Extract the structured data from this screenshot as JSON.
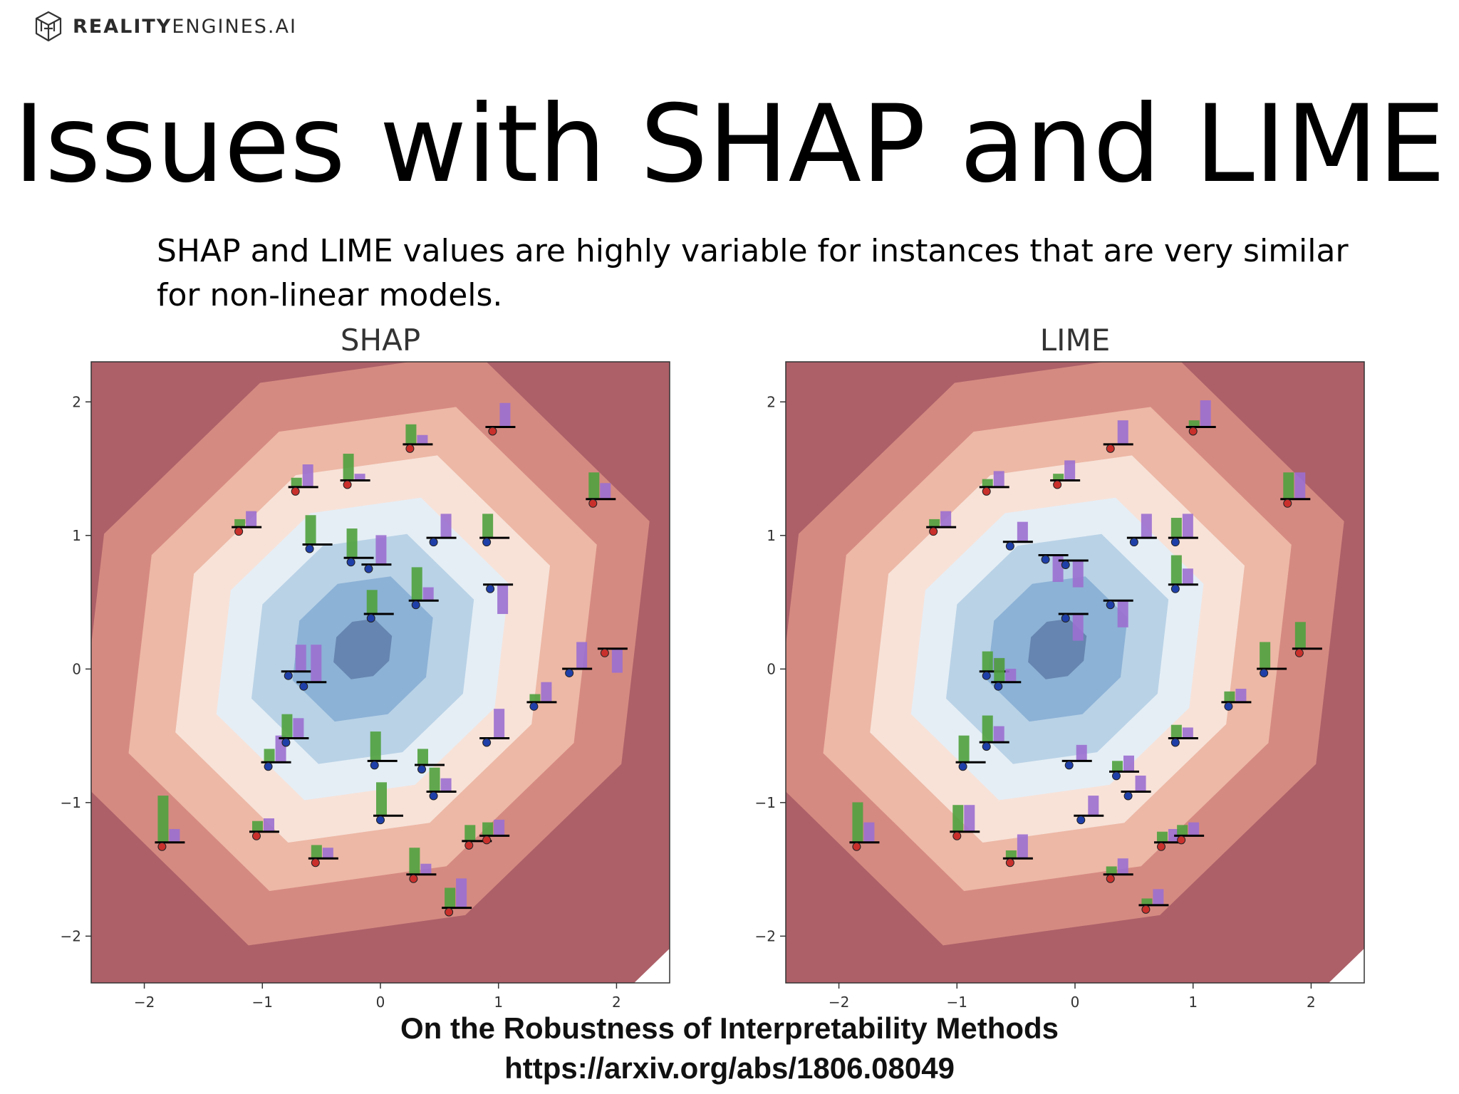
{
  "logo": {
    "bold": "REALITY",
    "light": "ENGINES.AI",
    "icon": "cube-network-icon"
  },
  "slide": {
    "title": "Issues with SHAP and LIME",
    "subtitle": "SHAP and LIME values are highly variable for instances that are very similar for non-linear models."
  },
  "caption": {
    "line1": "On the Robustness of Interpretability Methods",
    "line2": "https://arxiv.org/abs/1806.08049"
  },
  "colors": {
    "feature1_bar": "#4fa13e",
    "feature2_bar": "#9b6fd0",
    "class_a_point": "#c9302c",
    "class_b_point": "#1f3fa8",
    "baseline": "#000000"
  },
  "chart_data": [
    {
      "type": "scatter",
      "title": "SHAP",
      "xlabel": "",
      "ylabel": "",
      "xlim": [
        -2.45,
        2.45
      ],
      "ylim": [
        -2.35,
        2.3
      ],
      "xticks": [
        -2,
        -1,
        0,
        1,
        2
      ],
      "yticks": [
        -2,
        -1,
        0,
        1,
        2
      ],
      "grid": false,
      "background": "filled contour of model output, blue center to red edges",
      "glyphs": "each point has a horizontal baseline with a green bar (feature 1 attribution) and a purple bar (feature 2 attribution)",
      "points": [
        {
          "x": 0.25,
          "y": 1.65,
          "f1": 0.15,
          "f2": 0.07,
          "cls": "a"
        },
        {
          "x": 0.95,
          "y": 1.78,
          "f1": 0.0,
          "f2": 0.18,
          "cls": "a"
        },
        {
          "x": -0.72,
          "y": 1.33,
          "f1": 0.07,
          "f2": 0.17,
          "cls": "a"
        },
        {
          "x": -0.28,
          "y": 1.38,
          "f1": 0.2,
          "f2": 0.05,
          "cls": "a"
        },
        {
          "x": 1.8,
          "y": 1.24,
          "f1": 0.2,
          "f2": 0.12,
          "cls": "a"
        },
        {
          "x": -1.2,
          "y": 1.03,
          "f1": 0.06,
          "f2": 0.12,
          "cls": "a"
        },
        {
          "x": -0.6,
          "y": 0.9,
          "f1": 0.22,
          "f2": 0.0,
          "cls": "b"
        },
        {
          "x": -0.25,
          "y": 0.8,
          "f1": 0.22,
          "f2": 0.0,
          "cls": "b"
        },
        {
          "x": -0.1,
          "y": 0.75,
          "f1": 0.0,
          "f2": 0.22,
          "cls": "b"
        },
        {
          "x": 0.45,
          "y": 0.95,
          "f1": 0.0,
          "f2": 0.18,
          "cls": "b"
        },
        {
          "x": 0.9,
          "y": 0.95,
          "f1": 0.18,
          "f2": 0.0,
          "cls": "b"
        },
        {
          "x": 0.93,
          "y": 0.6,
          "f1": 0.0,
          "f2": -0.22,
          "cls": "b"
        },
        {
          "x": -0.08,
          "y": 0.38,
          "f1": 0.18,
          "f2": 0.0,
          "cls": "b"
        },
        {
          "x": 0.3,
          "y": 0.48,
          "f1": 0.25,
          "f2": 0.1,
          "cls": "b"
        },
        {
          "x": -0.78,
          "y": -0.05,
          "f1": 0.0,
          "f2": 0.2,
          "cls": "b"
        },
        {
          "x": -0.65,
          "y": -0.13,
          "f1": 0.0,
          "f2": 0.28,
          "cls": "b"
        },
        {
          "x": 1.9,
          "y": 0.12,
          "f1": 0.0,
          "f2": -0.18,
          "cls": "a"
        },
        {
          "x": 1.6,
          "y": -0.03,
          "f1": 0.0,
          "f2": 0.2,
          "cls": "b"
        },
        {
          "x": 1.3,
          "y": -0.28,
          "f1": 0.06,
          "f2": 0.15,
          "cls": "b"
        },
        {
          "x": 0.9,
          "y": -0.55,
          "f1": 0.0,
          "f2": 0.22,
          "cls": "b"
        },
        {
          "x": -0.95,
          "y": -0.73,
          "f1": 0.1,
          "f2": 0.2,
          "cls": "b"
        },
        {
          "x": -0.8,
          "y": -0.55,
          "f1": 0.18,
          "f2": 0.15,
          "cls": "b"
        },
        {
          "x": -0.05,
          "y": -0.72,
          "f1": 0.22,
          "f2": 0.0,
          "cls": "b"
        },
        {
          "x": 0.35,
          "y": -0.75,
          "f1": 0.12,
          "f2": 0.0,
          "cls": "b"
        },
        {
          "x": 0.45,
          "y": -0.95,
          "f1": 0.18,
          "f2": 0.1,
          "cls": "b"
        },
        {
          "x": 0.0,
          "y": -1.13,
          "f1": 0.25,
          "f2": 0.0,
          "cls": "b"
        },
        {
          "x": -1.85,
          "y": -1.33,
          "f1": 0.35,
          "f2": 0.1,
          "cls": "a"
        },
        {
          "x": -1.05,
          "y": -1.25,
          "f1": 0.08,
          "f2": 0.1,
          "cls": "a"
        },
        {
          "x": -0.55,
          "y": -1.45,
          "f1": 0.1,
          "f2": 0.08,
          "cls": "a"
        },
        {
          "x": 0.28,
          "y": -1.57,
          "f1": 0.2,
          "f2": 0.08,
          "cls": "a"
        },
        {
          "x": 0.58,
          "y": -1.82,
          "f1": 0.15,
          "f2": 0.22,
          "cls": "a"
        },
        {
          "x": 0.75,
          "y": -1.32,
          "f1": 0.12,
          "f2": 0.0,
          "cls": "a"
        },
        {
          "x": 0.9,
          "y": -1.28,
          "f1": 0.1,
          "f2": 0.12,
          "cls": "a"
        }
      ]
    },
    {
      "type": "scatter",
      "title": "LIME",
      "xlabel": "",
      "ylabel": "",
      "xlim": [
        -2.45,
        2.45
      ],
      "ylim": [
        -2.35,
        2.3
      ],
      "xticks": [
        -2,
        -1,
        0,
        1,
        2
      ],
      "yticks": [
        -2,
        -1,
        0,
        1,
        2
      ],
      "grid": false,
      "background": "filled contour of model output, blue center to red edges",
      "glyphs": "each point has a horizontal baseline with a green bar (feature 1 attribution) and a purple bar (feature 2 attribution)",
      "points": [
        {
          "x": 0.3,
          "y": 1.65,
          "f1": 0.0,
          "f2": 0.18,
          "cls": "a"
        },
        {
          "x": 1.0,
          "y": 1.78,
          "f1": 0.05,
          "f2": 0.2,
          "cls": "a"
        },
        {
          "x": -0.75,
          "y": 1.33,
          "f1": 0.06,
          "f2": 0.12,
          "cls": "a"
        },
        {
          "x": -0.15,
          "y": 1.38,
          "f1": 0.05,
          "f2": 0.15,
          "cls": "a"
        },
        {
          "x": 1.8,
          "y": 1.24,
          "f1": 0.2,
          "f2": 0.2,
          "cls": "a"
        },
        {
          "x": -1.2,
          "y": 1.03,
          "f1": 0.06,
          "f2": 0.12,
          "cls": "a"
        },
        {
          "x": -0.55,
          "y": 0.92,
          "f1": 0.0,
          "f2": 0.15,
          "cls": "b"
        },
        {
          "x": -0.25,
          "y": 0.82,
          "f1": 0.0,
          "f2": -0.2,
          "cls": "b"
        },
        {
          "x": -0.08,
          "y": 0.78,
          "f1": 0.0,
          "f2": -0.2,
          "cls": "b"
        },
        {
          "x": 0.5,
          "y": 0.95,
          "f1": 0.0,
          "f2": 0.18,
          "cls": "b"
        },
        {
          "x": 0.85,
          "y": 0.95,
          "f1": 0.15,
          "f2": 0.18,
          "cls": "b"
        },
        {
          "x": 0.85,
          "y": 0.6,
          "f1": 0.22,
          "f2": 0.12,
          "cls": "b"
        },
        {
          "x": -0.08,
          "y": 0.38,
          "f1": 0.0,
          "f2": -0.2,
          "cls": "b"
        },
        {
          "x": 0.3,
          "y": 0.48,
          "f1": 0.0,
          "f2": -0.2,
          "cls": "b"
        },
        {
          "x": -0.75,
          "y": -0.05,
          "f1": 0.15,
          "f2": 0.1,
          "cls": "b"
        },
        {
          "x": -0.65,
          "y": -0.13,
          "f1": 0.18,
          "f2": 0.1,
          "cls": "b"
        },
        {
          "x": 1.9,
          "y": 0.12,
          "f1": 0.2,
          "f2": 0.0,
          "cls": "a"
        },
        {
          "x": 1.6,
          "y": -0.03,
          "f1": 0.2,
          "f2": 0.0,
          "cls": "b"
        },
        {
          "x": 1.3,
          "y": -0.28,
          "f1": 0.08,
          "f2": 0.1,
          "cls": "b"
        },
        {
          "x": 0.85,
          "y": -0.55,
          "f1": 0.1,
          "f2": 0.08,
          "cls": "b"
        },
        {
          "x": -0.95,
          "y": -0.73,
          "f1": 0.2,
          "f2": 0.0,
          "cls": "b"
        },
        {
          "x": -0.75,
          "y": -0.58,
          "f1": 0.2,
          "f2": 0.12,
          "cls": "b"
        },
        {
          "x": -0.05,
          "y": -0.72,
          "f1": 0.0,
          "f2": 0.12,
          "cls": "b"
        },
        {
          "x": 0.35,
          "y": -0.8,
          "f1": 0.08,
          "f2": 0.12,
          "cls": "b"
        },
        {
          "x": 0.45,
          "y": -0.95,
          "f1": 0.0,
          "f2": 0.12,
          "cls": "b"
        },
        {
          "x": 0.05,
          "y": -1.13,
          "f1": 0.0,
          "f2": 0.15,
          "cls": "b"
        },
        {
          "x": -1.85,
          "y": -1.33,
          "f1": 0.3,
          "f2": 0.15,
          "cls": "a"
        },
        {
          "x": -1.0,
          "y": -1.25,
          "f1": 0.2,
          "f2": 0.2,
          "cls": "a"
        },
        {
          "x": -0.55,
          "y": -1.45,
          "f1": 0.06,
          "f2": 0.18,
          "cls": "a"
        },
        {
          "x": 0.3,
          "y": -1.57,
          "f1": 0.06,
          "f2": 0.12,
          "cls": "a"
        },
        {
          "x": 0.6,
          "y": -1.8,
          "f1": 0.05,
          "f2": 0.12,
          "cls": "a"
        },
        {
          "x": 0.73,
          "y": -1.33,
          "f1": 0.08,
          "f2": 0.1,
          "cls": "a"
        },
        {
          "x": 0.9,
          "y": -1.28,
          "f1": 0.08,
          "f2": 0.1,
          "cls": "a"
        }
      ]
    }
  ]
}
